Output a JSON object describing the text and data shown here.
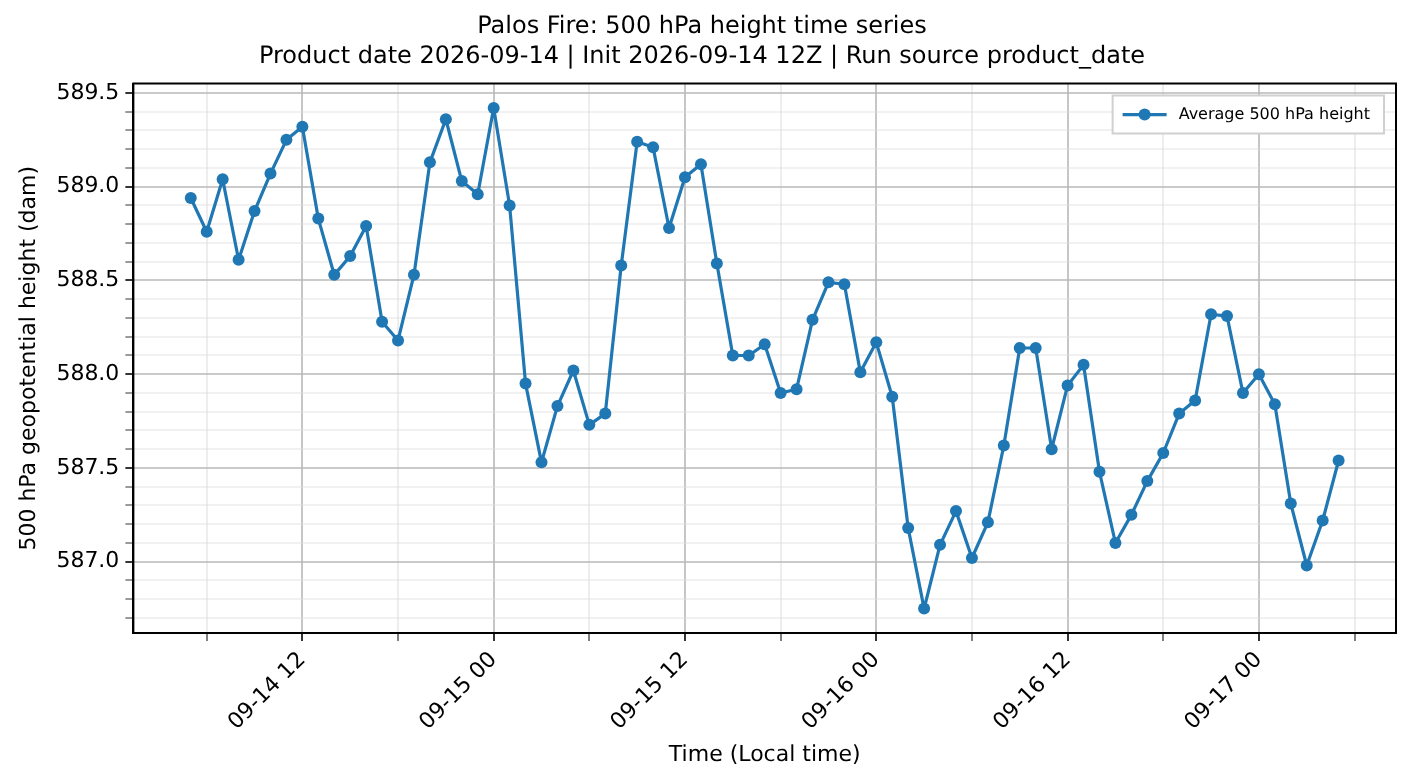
{
  "chart_data": {
    "type": "line",
    "title": "Palos Fire: 500 hPa height time series",
    "subtitle": "Product date 2026-09-14 | Init 2026-09-14 12Z | Run source product_date",
    "xlabel": "Time (Local time)",
    "ylabel": "500 hPa geopotential height (dam)",
    "x": [
      "2026-09-14T05:00",
      "2026-09-14T06:00",
      "2026-09-14T07:00",
      "2026-09-14T08:00",
      "2026-09-14T09:00",
      "2026-09-14T10:00",
      "2026-09-14T11:00",
      "2026-09-14T12:00",
      "2026-09-14T13:00",
      "2026-09-14T14:00",
      "2026-09-14T15:00",
      "2026-09-14T16:00",
      "2026-09-14T17:00",
      "2026-09-14T18:00",
      "2026-09-14T19:00",
      "2026-09-14T20:00",
      "2026-09-14T21:00",
      "2026-09-14T22:00",
      "2026-09-14T23:00",
      "2026-09-15T00:00",
      "2026-09-15T01:00",
      "2026-09-15T02:00",
      "2026-09-15T03:00",
      "2026-09-15T04:00",
      "2026-09-15T05:00",
      "2026-09-15T06:00",
      "2026-09-15T07:00",
      "2026-09-15T08:00",
      "2026-09-15T09:00",
      "2026-09-15T10:00",
      "2026-09-15T11:00",
      "2026-09-15T12:00",
      "2026-09-15T13:00",
      "2026-09-15T14:00",
      "2026-09-15T15:00",
      "2026-09-15T16:00",
      "2026-09-15T17:00",
      "2026-09-15T18:00",
      "2026-09-15T19:00",
      "2026-09-15T20:00",
      "2026-09-15T21:00",
      "2026-09-15T22:00",
      "2026-09-15T23:00",
      "2026-09-16T00:00",
      "2026-09-16T01:00",
      "2026-09-16T02:00",
      "2026-09-16T03:00",
      "2026-09-16T04:00",
      "2026-09-16T05:00",
      "2026-09-16T06:00",
      "2026-09-16T07:00",
      "2026-09-16T08:00",
      "2026-09-16T09:00",
      "2026-09-16T10:00",
      "2026-09-16T11:00",
      "2026-09-16T12:00",
      "2026-09-16T13:00",
      "2026-09-16T14:00",
      "2026-09-16T15:00",
      "2026-09-16T16:00",
      "2026-09-16T17:00",
      "2026-09-16T18:00",
      "2026-09-16T19:00",
      "2026-09-16T20:00",
      "2026-09-16T21:00",
      "2026-09-16T22:00",
      "2026-09-16T23:00",
      "2026-09-17T00:00",
      "2026-09-17T01:00",
      "2026-09-17T02:00",
      "2026-09-17T03:00",
      "2026-09-17T04:00",
      "2026-09-17T05:00"
    ],
    "series": [
      {
        "name": "Average 500 hPa height",
        "color": "#1f77b4",
        "values": [
          588.94,
          588.76,
          589.04,
          588.61,
          588.87,
          589.07,
          589.25,
          589.32,
          588.83,
          588.53,
          588.63,
          588.79,
          588.28,
          588.18,
          588.53,
          589.13,
          589.36,
          589.03,
          588.96,
          589.42,
          588.9,
          587.95,
          587.53,
          587.83,
          588.02,
          587.73,
          587.79,
          588.58,
          589.24,
          589.21,
          588.78,
          589.05,
          589.12,
          588.59,
          588.1,
          588.1,
          588.16,
          587.9,
          587.92,
          588.29,
          588.49,
          588.48,
          588.01,
          588.17,
          587.88,
          587.18,
          586.75,
          587.09,
          587.27,
          587.02,
          587.21,
          587.62,
          588.14,
          588.14,
          587.6,
          587.94,
          588.05,
          587.48,
          587.1,
          587.25,
          587.43,
          587.58,
          587.79,
          587.86,
          588.32,
          588.31,
          587.9,
          588.0,
          587.84,
          587.31,
          586.98,
          587.22,
          587.54
        ]
      }
    ],
    "xlim": [
      "2026-09-14T01:24",
      "2026-09-17T08:36"
    ],
    "xticks": [
      {
        "value": "2026-09-14T06:00",
        "label": null
      },
      {
        "value": "2026-09-14T12:00",
        "label": "09-14 12"
      },
      {
        "value": "2026-09-14T18:00",
        "label": null
      },
      {
        "value": "2026-09-15T00:00",
        "label": "09-15 00"
      },
      {
        "value": "2026-09-15T06:00",
        "label": null
      },
      {
        "value": "2026-09-15T12:00",
        "label": "09-15 12"
      },
      {
        "value": "2026-09-15T18:00",
        "label": null
      },
      {
        "value": "2026-09-16T00:00",
        "label": "09-16 00"
      },
      {
        "value": "2026-09-16T06:00",
        "label": null
      },
      {
        "value": "2026-09-16T12:00",
        "label": "09-16 12"
      },
      {
        "value": "2026-09-16T18:00",
        "label": null
      },
      {
        "value": "2026-09-17T00:00",
        "label": "09-17 00"
      },
      {
        "value": "2026-09-17T06:00",
        "label": null
      }
    ],
    "ylim": [
      586.62,
      589.55
    ],
    "yticks": [
      {
        "value": 586.7,
        "label": null
      },
      {
        "value": 586.8,
        "label": null
      },
      {
        "value": 586.9,
        "label": null
      },
      {
        "value": 587.0,
        "label": "587.0"
      },
      {
        "value": 587.1,
        "label": null
      },
      {
        "value": 587.2,
        "label": null
      },
      {
        "value": 587.3,
        "label": null
      },
      {
        "value": 587.4,
        "label": null
      },
      {
        "value": 587.5,
        "label": "587.5"
      },
      {
        "value": 587.6,
        "label": null
      },
      {
        "value": 587.7,
        "label": null
      },
      {
        "value": 587.8,
        "label": null
      },
      {
        "value": 587.9,
        "label": null
      },
      {
        "value": 588.0,
        "label": "588.0"
      },
      {
        "value": 588.1,
        "label": null
      },
      {
        "value": 588.2,
        "label": null
      },
      {
        "value": 588.3,
        "label": null
      },
      {
        "value": 588.4,
        "label": null
      },
      {
        "value": 588.5,
        "label": "588.5"
      },
      {
        "value": 588.6,
        "label": null
      },
      {
        "value": 588.7,
        "label": null
      },
      {
        "value": 588.8,
        "label": null
      },
      {
        "value": 588.9,
        "label": null
      },
      {
        "value": 589.0,
        "label": "589.0"
      },
      {
        "value": 589.1,
        "label": null
      },
      {
        "value": 589.2,
        "label": null
      },
      {
        "value": 589.3,
        "label": null
      },
      {
        "value": 589.4,
        "label": null
      },
      {
        "value": 589.5,
        "label": "589.5"
      }
    ],
    "grid": true,
    "legend": "top right",
    "marker": "circle",
    "line_style": "solid"
  }
}
